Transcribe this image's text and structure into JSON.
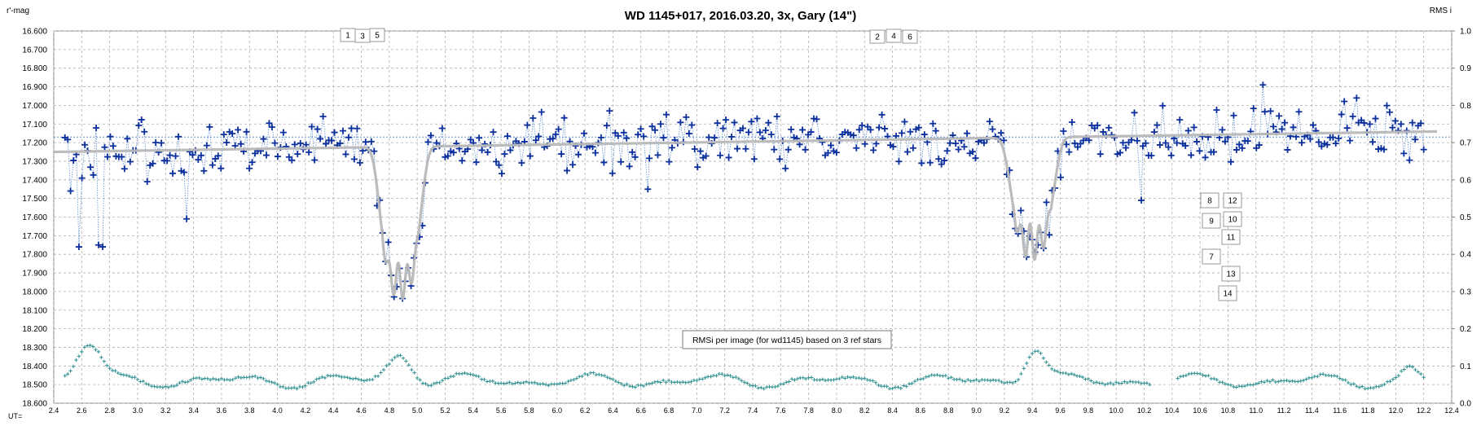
{
  "chart_data": {
    "type": "scatter",
    "title": "WD 1145+017,  2016.03.20,  3x, Gary (14\")",
    "ylabel": "r'-mag",
    "y2label": "RMS i",
    "xlabel_prefix": "UT=",
    "x_range": [
      2.4,
      12.4
    ],
    "x_ticks": [
      "2.4",
      "2.6",
      "2.8",
      "3.0",
      "3.2",
      "3.4",
      "3.6",
      "3.8",
      "4.0",
      "4.2",
      "4.4",
      "4.6",
      "4.8",
      "5.0",
      "5.2",
      "5.4",
      "5.6",
      "5.8",
      "6.0",
      "6.2",
      "6.4",
      "6.6",
      "6.8",
      "7.0",
      "7.2",
      "7.4",
      "7.6",
      "7.8",
      "8.0",
      "8.2",
      "8.4",
      "8.6",
      "8.8",
      "9.0",
      "9.2",
      "9.4",
      "9.6",
      "9.8",
      "10.0",
      "10.2",
      "10.4",
      "10.6",
      "10.8",
      "11.0",
      "11.2",
      "11.4",
      "11.6",
      "11.8",
      "12.0",
      "12.2",
      "12.4"
    ],
    "y_range": [
      16.6,
      18.6
    ],
    "y_inverted": true,
    "y_ticks": [
      "16.600",
      "16.700",
      "16.800",
      "16.900",
      "17.000",
      "17.100",
      "17.200",
      "17.300",
      "17.400",
      "17.500",
      "17.600",
      "17.700",
      "17.800",
      "17.900",
      "18.000",
      "18.100",
      "18.200",
      "18.300",
      "18.400",
      "18.500",
      "18.600"
    ],
    "y2_range": [
      0.0,
      1.0
    ],
    "y2_ticks": [
      "1.0",
      "0.9",
      "0.8",
      "0.7",
      "0.6",
      "0.5",
      "0.4",
      "0.3",
      "0.2",
      "0.1",
      "0.0"
    ],
    "grid": true,
    "reference_level": 17.17,
    "annotation": "RMSi per image (for wd1145) based on 3 ref stars",
    "markers": [
      "1",
      "3",
      "5",
      "2",
      "4",
      "6",
      "8",
      "12",
      "9",
      "10",
      "11",
      "7",
      "13",
      "14"
    ],
    "model": {
      "baseline_start": 17.25,
      "baseline_end": 17.14,
      "dips": [
        {
          "center": 4.88,
          "depth": 0.72,
          "width": 0.16,
          "ripple": true
        },
        {
          "center": 9.4,
          "depth": 0.56,
          "width": 0.17,
          "ripple": true
        }
      ]
    },
    "photometry": {
      "x_start": 2.48,
      "x_end": 12.2,
      "count": 480,
      "scatter": 0.07,
      "outliers": [
        [
          2.58,
          17.76
        ],
        [
          2.72,
          17.75
        ],
        [
          2.75,
          17.76
        ],
        [
          3.35,
          17.61
        ],
        [
          2.52,
          17.46
        ],
        [
          11.05,
          16.89
        ],
        [
          11.72,
          16.96
        ],
        [
          10.18,
          17.51
        ],
        [
          6.65,
          17.45
        ]
      ]
    },
    "rms_series": {
      "x_start": 2.48,
      "x_end": 12.2,
      "base": 0.06,
      "bumps": [
        {
          "center": 2.65,
          "height": 0.1,
          "width": 0.12
        },
        {
          "center": 4.88,
          "height": 0.07,
          "width": 0.12
        },
        {
          "center": 9.42,
          "height": 0.09,
          "width": 0.1
        },
        {
          "center": 12.1,
          "height": 0.03,
          "width": 0.08
        }
      ],
      "gaps": [
        [
          10.25,
          10.42
        ]
      ],
      "colors": {
        "rms": "#2f8f8f"
      }
    },
    "colors": {
      "data": "#0b2f9c",
      "model": "#b8b8b8",
      "grid": "#b0b0b0",
      "reference": "#5b8fd6"
    }
  }
}
